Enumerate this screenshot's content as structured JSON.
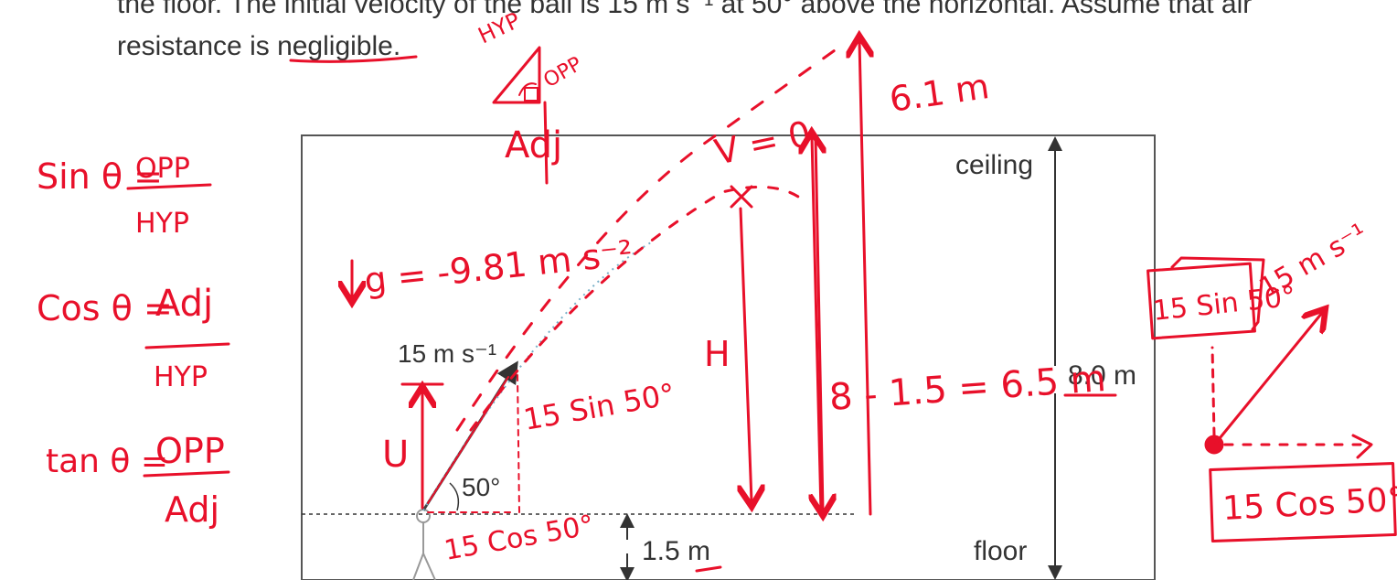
{
  "problem": {
    "line1": "the floor.  The initial velocity of the ball is 15 m s⁻¹ at 50° above the horizontal.  Assume that air",
    "line2": "resistance is negligible."
  },
  "diagram": {
    "ceiling_label": "ceiling",
    "floor_label": "floor",
    "room_height": "8.0 m",
    "launch_height": "1.5 m",
    "speed_label": "15 m s⁻¹",
    "angle_label": "50°"
  },
  "annotations": {
    "tri_hyp": "HYP",
    "tri_opp": "OPP",
    "tri_adj": "Adj",
    "sin_rule_lhs": "Sin θ =",
    "sin_rule_num": "OPP",
    "sin_rule_den": "HYP",
    "cos_rule_lhs": "Cos θ =",
    "cos_rule_num": "Adj",
    "cos_rule_den": "HYP",
    "tan_rule_lhs": "tan θ =",
    "tan_rule_num": "OPP",
    "tan_rule_den": "Adj",
    "gravity": "g = -9.81 m s⁻²",
    "v_zero": "V = 0",
    "height_6_1": "6.1 m",
    "height_H": "H",
    "height_calc": "8 - 1.5 = 6.5 m",
    "u_label": "U",
    "vertical_comp": "15 Sin 50°",
    "horizontal_comp": "15 Cos 50°",
    "side_speed": "15 m s⁻¹",
    "side_vertical": "15 Sin 50°",
    "side_horizontal": "15 Cos 50°"
  },
  "colors": {
    "ink": "#e8102a",
    "print": "#333333"
  }
}
